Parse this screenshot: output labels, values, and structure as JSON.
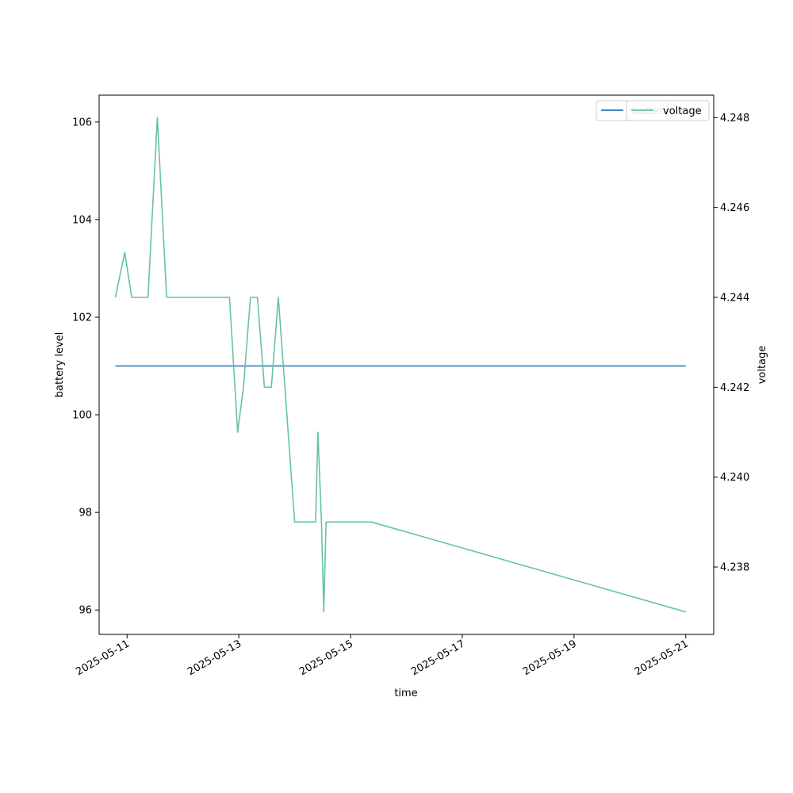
{
  "chart_data": {
    "type": "line",
    "xlabel": "time",
    "ylabel_left": "battery level",
    "ylabel_right": "voltage",
    "xlim": [
      "2025-05-10 12:00",
      "2025-05-21 12:00"
    ],
    "ylim_left": [
      95.5,
      106.55
    ],
    "ylim_right": [
      4.2365,
      4.2485
    ],
    "x_ticks": [
      "2025-05-11",
      "2025-05-13",
      "2025-05-15",
      "2025-05-17",
      "2025-05-19",
      "2025-05-21"
    ],
    "y_left_ticks": [
      "96",
      "98",
      "100",
      "102",
      "104",
      "106"
    ],
    "y_right_ticks": [
      "4.238",
      "4.240",
      "4.242",
      "4.244",
      "4.246",
      "4.248"
    ],
    "legend": {
      "placement": "top-right",
      "entries": [
        "battery",
        "voltage"
      ]
    },
    "series": [
      {
        "name": "battery",
        "axis": "left",
        "color": "#1f77b4",
        "points": [
          {
            "t": "2025-05-10 19:00",
            "v": 101
          },
          {
            "t": "2025-05-21 00:00",
            "v": 101
          }
        ]
      },
      {
        "name": "voltage",
        "axis": "right",
        "color": "#66c2a5",
        "points": [
          {
            "t": "2025-05-10 19:00",
            "v": 4.244
          },
          {
            "t": "2025-05-10 23:00",
            "v": 4.245
          },
          {
            "t": "2025-05-11 02:00",
            "v": 4.244
          },
          {
            "t": "2025-05-11 09:00",
            "v": 4.244
          },
          {
            "t": "2025-05-11 13:00",
            "v": 4.248
          },
          {
            "t": "2025-05-11 17:00",
            "v": 4.244
          },
          {
            "t": "2025-05-12 20:00",
            "v": 4.244
          },
          {
            "t": "2025-05-12 23:30",
            "v": 4.241
          },
          {
            "t": "2025-05-13 02:00",
            "v": 4.242
          },
          {
            "t": "2025-05-13 05:00",
            "v": 4.244
          },
          {
            "t": "2025-05-13 08:00",
            "v": 4.244
          },
          {
            "t": "2025-05-13 11:00",
            "v": 4.242
          },
          {
            "t": "2025-05-13 14:00",
            "v": 4.242
          },
          {
            "t": "2025-05-13 17:00",
            "v": 4.244
          },
          {
            "t": "2025-05-14 00:00",
            "v": 4.239
          },
          {
            "t": "2025-05-14 09:00",
            "v": 4.239
          },
          {
            "t": "2025-05-14 10:00",
            "v": 4.241
          },
          {
            "t": "2025-05-14 11:30",
            "v": 4.239
          },
          {
            "t": "2025-05-14 12:30",
            "v": 4.237
          },
          {
            "t": "2025-05-14 13:30",
            "v": 4.239
          },
          {
            "t": "2025-05-15 09:00",
            "v": 4.239
          },
          {
            "t": "2025-05-21 00:00",
            "v": 4.237
          }
        ]
      }
    ]
  }
}
